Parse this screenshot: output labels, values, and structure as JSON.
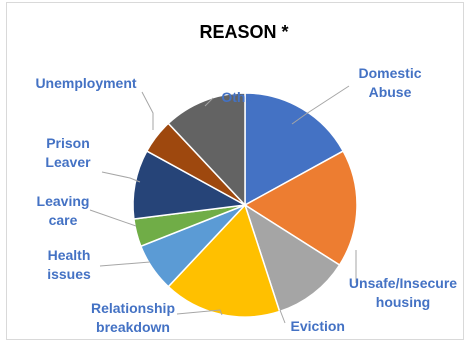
{
  "chart_data": {
    "type": "pie",
    "title": "REASON *",
    "label_color": "#4472C4",
    "legend": "none",
    "slices": [
      {
        "label": "Domestic Abuse",
        "value": 17,
        "color": "#4472C4"
      },
      {
        "label": "Unsafe/Insecure housing",
        "value": 17,
        "color": "#ED7D31"
      },
      {
        "label": "Eviction",
        "value": 11,
        "color": "#A5A5A5"
      },
      {
        "label": "Relationship breakdown",
        "value": 17,
        "color": "#FFC000"
      },
      {
        "label": "Health issues",
        "value": 7,
        "color": "#5B9BD5"
      },
      {
        "label": "Leaving care",
        "value": 4,
        "color": "#70AD47"
      },
      {
        "label": "Prison Leaver",
        "value": 10,
        "color": "#264478"
      },
      {
        "label": "Unemployment",
        "value": 5,
        "color": "#9E480E"
      },
      {
        "label": "Other",
        "value": 12,
        "color": "#636363"
      }
    ]
  }
}
